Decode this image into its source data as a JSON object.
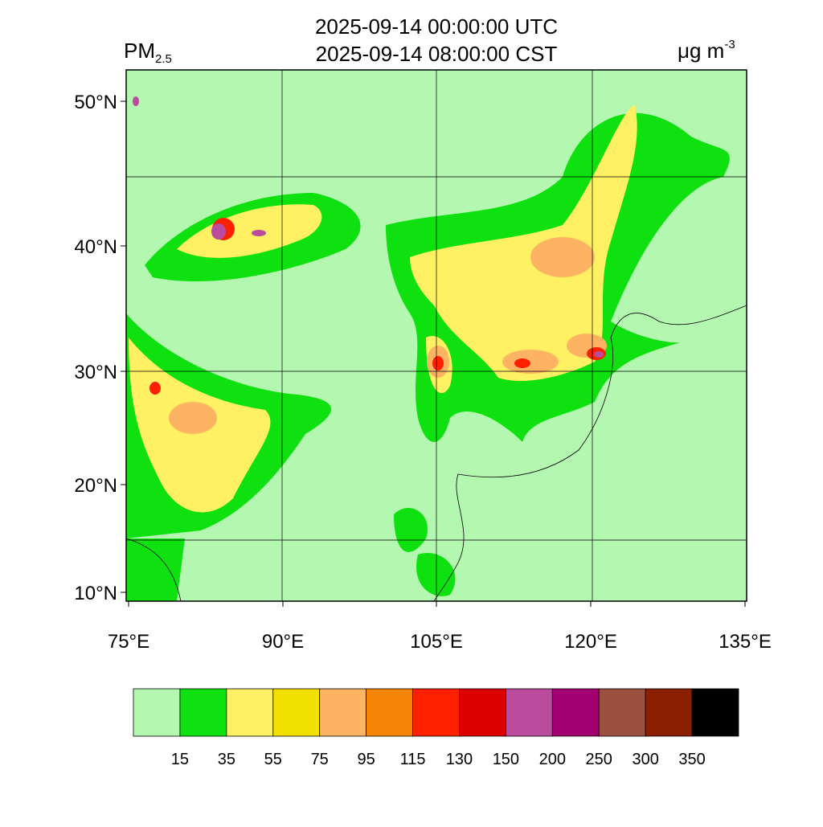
{
  "header": {
    "variable": "PM",
    "variable_sub": "2.5",
    "title_lines": [
      "2025-09-14 00:00:00 UTC",
      "2025-09-14 08:00:00 CST"
    ],
    "units": "μg m",
    "units_sup": "-3"
  },
  "map": {
    "lat_labels": [
      "50°N",
      "40°N",
      "30°N",
      "20°N",
      "10°N"
    ],
    "lon_labels": [
      "75°E",
      "90°E",
      "105°E",
      "120°E",
      "135°E"
    ]
  },
  "colorbar": {
    "colors": [
      "#b3f7b0",
      "#0fe00f",
      "#fff064",
      "#f2e000",
      "#fdb462",
      "#f58505",
      "#ff2000",
      "#dc0000",
      "#bb4b9c",
      "#a00070",
      "#9b5040",
      "#8b2000",
      "#000000"
    ],
    "levels": [
      15,
      35,
      55,
      75,
      95,
      115,
      130,
      150,
      200,
      250,
      300,
      350
    ]
  }
}
